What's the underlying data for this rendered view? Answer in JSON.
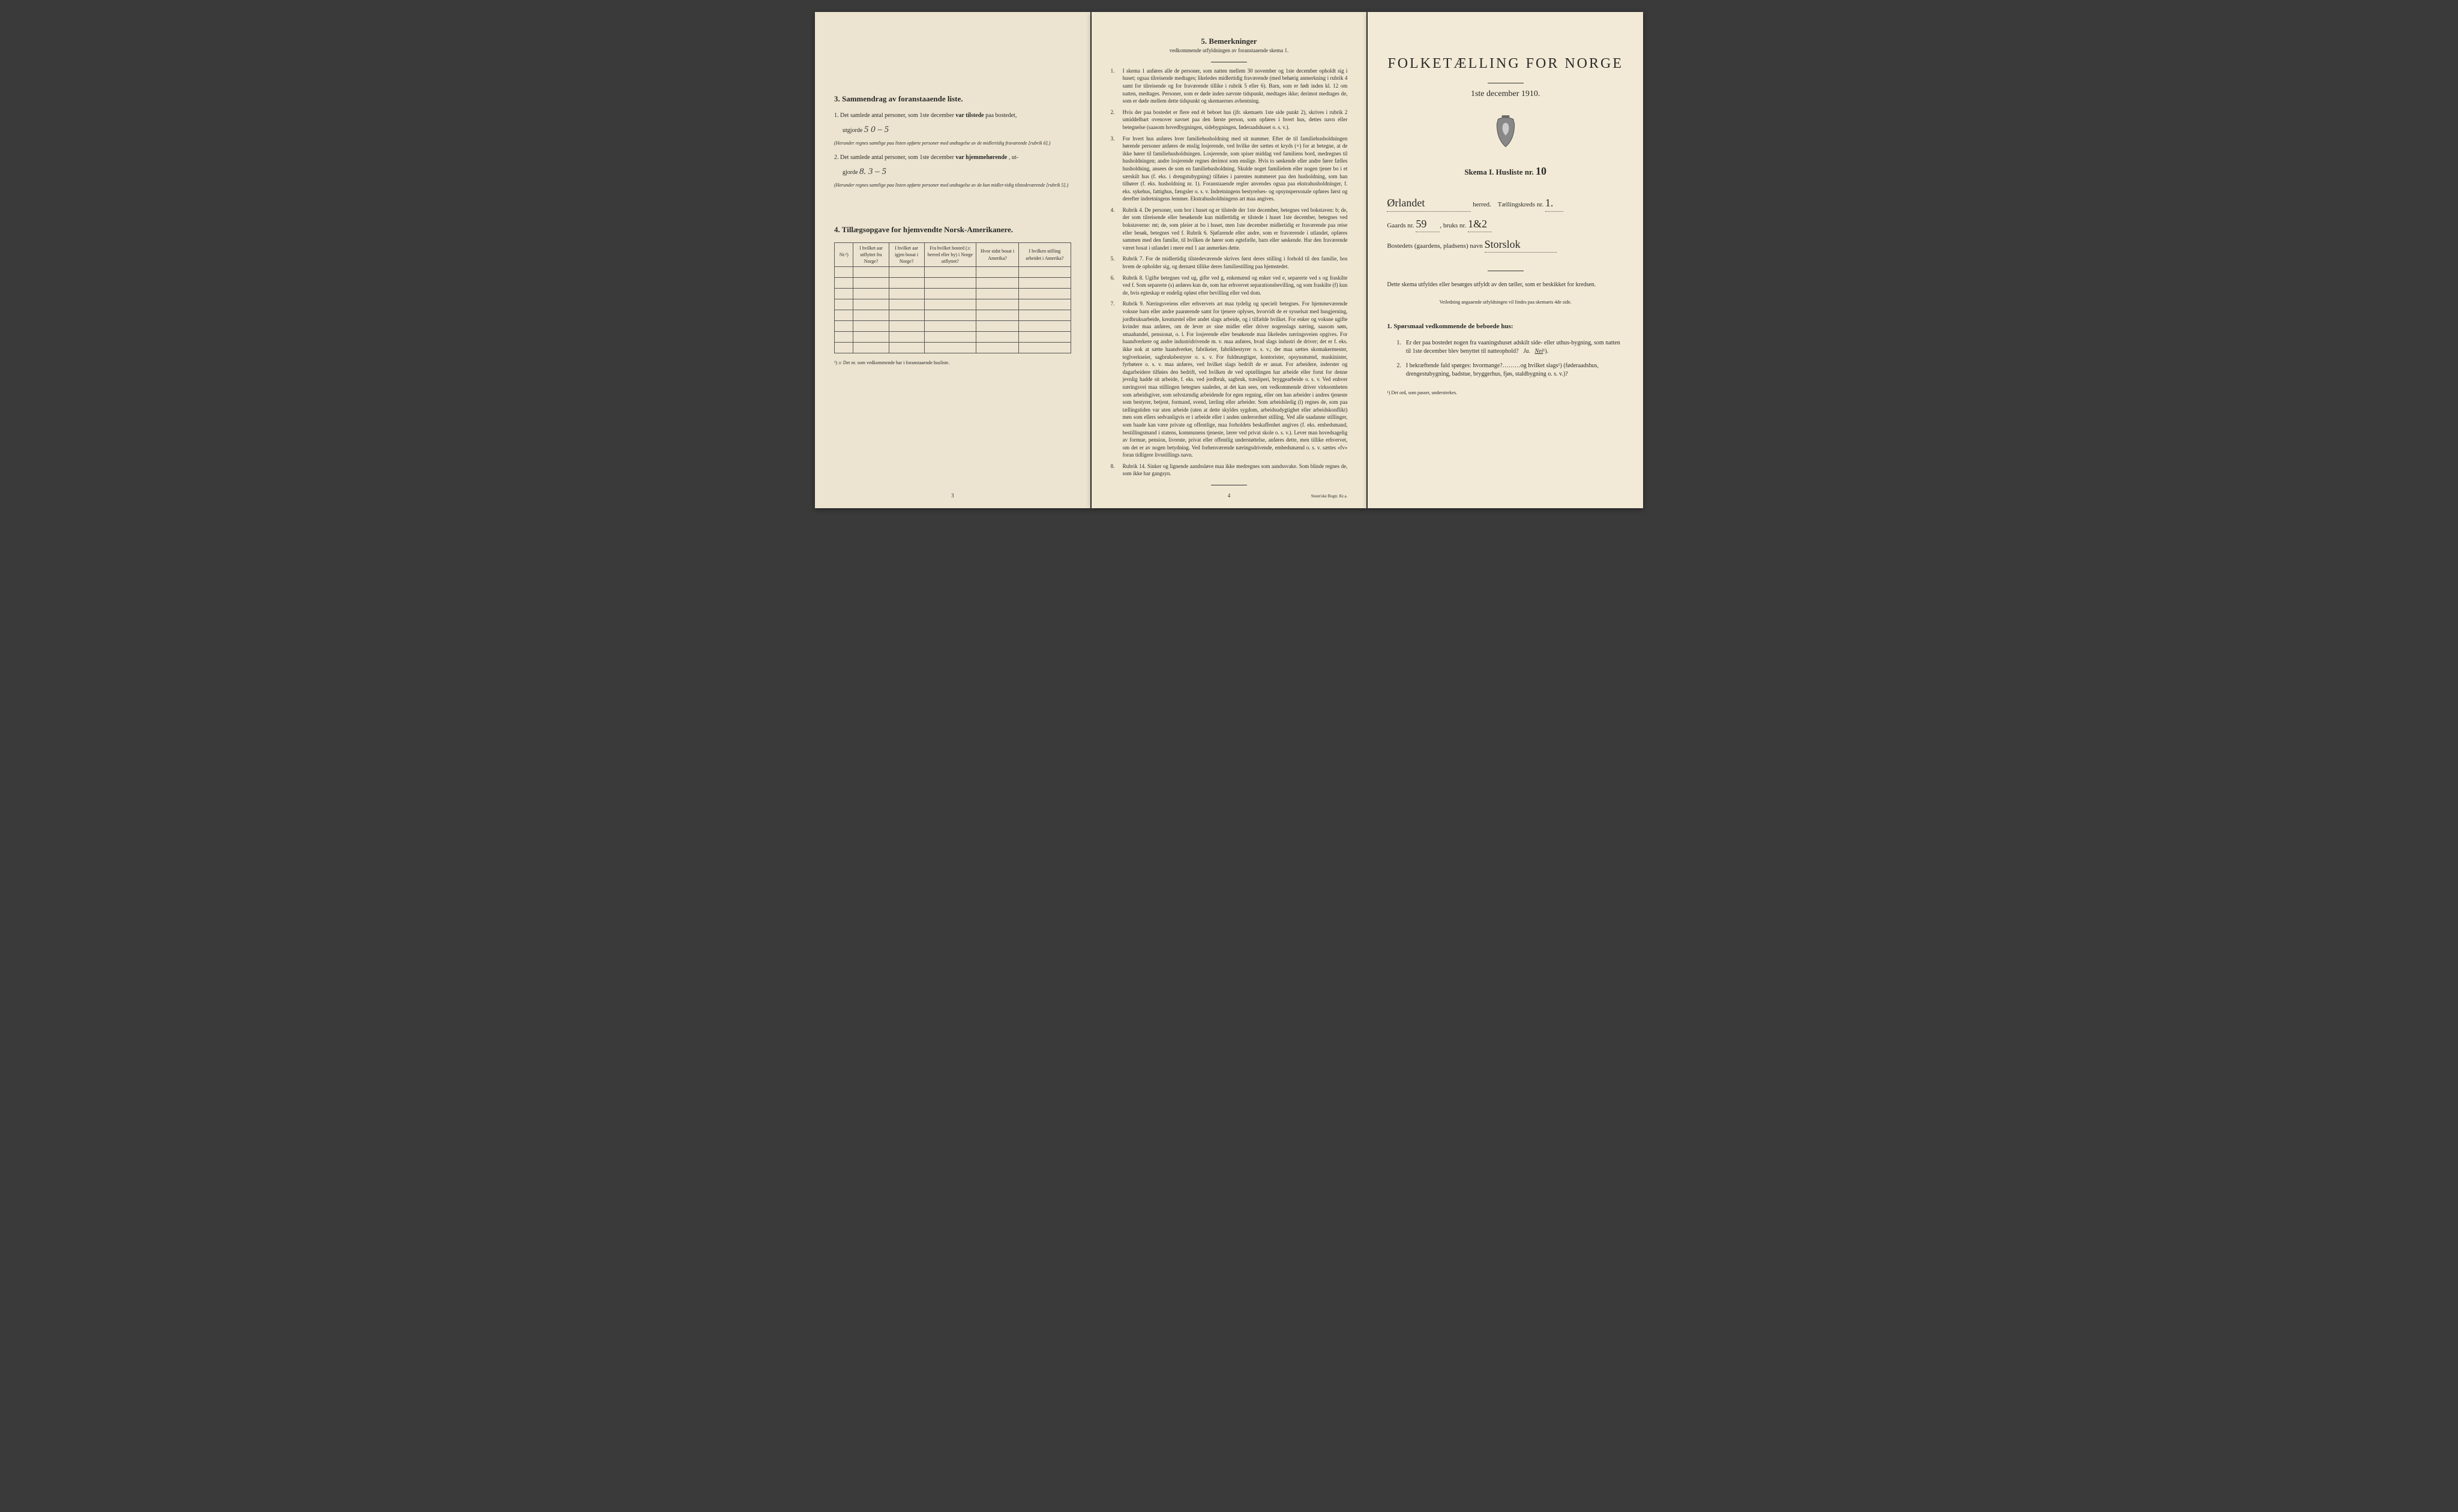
{
  "leftPage": {
    "section3": {
      "title": "3.   Sammendrag av foranstaaende liste.",
      "item1_prefix": "1.  Det samlede antal personer, som 1ste december",
      "item1_bold": "var tilstede",
      "item1_suffix": "paa bostedet,",
      "utgjorde": "utgjorde",
      "hand1": "5   0 – 5",
      "note1": "(Herunder regnes samtlige paa listen opførte personer med undtagelse av de midlertidig fraværende [rubrik 6].)",
      "item2_prefix": "2.  Det samlede antal personer, som 1ste december",
      "item2_bold": "var hjemmehørende",
      "item2_suffix": ", ut-",
      "gjorde": "gjorde",
      "hand2": "8.  3 – 5",
      "note2": "(Herunder regnes samtlige paa listen opførte personer med undtagelse av de kun midler-tidig tilstedeværende [rubrik 5].)"
    },
    "section4": {
      "title": "4.  Tillægsopgave for hjemvendte Norsk-Amerikanere.",
      "headers": [
        "Nr.¹)",
        "I hvilket aar utflyttet fra Norge?",
        "I hvilket aar igjen bosat i Norge?",
        "Fra hvilket bosted (ɔ: herred eller by) i Norge utflyttet?",
        "Hvor sidst bosat i Amerika?",
        "I hvilken stilling arbeidet i Amerika?"
      ],
      "footnote": "¹) ɔ: Det nr. som vedkommende har i foranstaaende husliste."
    },
    "pageNum": "3"
  },
  "midPage": {
    "title": "5.   Bemerkninger",
    "subtitle": "vedkommende utfyldningen av foranstaaende skema 1.",
    "items": [
      {
        "num": "1.",
        "text": "I skema 1 anføres alle de personer, som natten mellem 30 november og 1ste december opholdt sig i huset; ogsaa tilreisende medtages; likeledes midlertidig fraværende (med behørig anmerkning i rubrik 4 samt for tilreisende og for fraværende tillike i rubrik 5 eller 6). Barn, som er født inden kl. 12 om natten, medtages. Personer, som er døde inden nævnte tidspunkt, medtages ikke; derimot medtages de, som er døde mellem dette tidspunkt og skemaernes avhentning."
      },
      {
        "num": "2.",
        "text": "Hvis der paa bostedet er flere end ét beboet hus (jfr. skemaets 1ste side punkt 2), skrives i rubrik 2 umiddelbart ovenover navnet paa den første person, som opføres i hvert hus, dettes navn eller betegnelse (saasom hovedbygningen, sidebygningen, føderaadshuset o. s. v.)."
      },
      {
        "num": "3.",
        "text": "For hvert hus anføres hver familiehusholdning med sit nummer. Efter de til familiehusholdningen hørende personer anføres de enslig losjerende, ved hvilke der sættes et kryds (×) for at betegne, at de ikke hører til familiehusholdningen. Losjerende, som spiser middag ved familiens bord, medregnes til husholdningen; andre losjerende regnes derimot som enslige. Hvis to søskende eller andre fører fælles husholdning, ansees de som en familiehusholdning. Skulde noget familielem eller nogen tjener bo i et særskilt hus (f. eks. i drengstubygning) tilføies i parentes nummeret paa den husholdning, som han tilhører (f. eks. husholdning nr. 1).\nForanstaaende regler anvendes ogsaa paa ekstrahusholdninger, f. eks. sykehus, fattighus, fængsler o. s. v. Indretningens bestyrelses- og opsynspersonale opføres først og derefter indretningens lemmer. Ekstrahusholdningens art maa angives."
      },
      {
        "num": "4.",
        "text": "Rubrik 4. De personer, som bor i huset og er tilstede der 1ste december, betegnes ved bokstaven: b; de, der som tilreisende eller besøkende kun midlertidig er tilstede i huset 1ste december, betegnes ved bokstaverne: mt; de, som pleier at bo i huset, men 1ste december midlertidig er fraværende paa reise eller besøk, betegnes ved f.\nRubrik 6. Sjøfarende eller andre, som er fraværende i utlandet, opføres sammen med den familie, til hvilken de hører som egtefælle, barn eller søskende.\nHar den fraværende været bosat i utlandet i mere end 1 aar anmerkes dette."
      },
      {
        "num": "5.",
        "text": "Rubrik 7. For de midlertidig tilstedeværende skrives først deres stilling i forhold til den familie, hos hvem de opholder sig, og dernæst tillike deres familiestilling paa hjemstedet."
      },
      {
        "num": "6.",
        "text": "Rubrik 8. Ugifte betegnes ved ug, gifte ved g, enkemænd og enker ved e, separerte ved s og fraskilte ved f. Som separerte (s) anføres kun de, som har erhvervet separationsbevilling, og som fraskilte (f) kun de, hvis egteskap er endelig opløst efter bevilling eller ved dom."
      },
      {
        "num": "7.",
        "text": "Rubrik 9. Næringsveiens eller erhvervets art maa tydelig og specielt betegnes.\nFor hjemmeværende voksne barn eller andre paarørende samt for tjenere oplyses, hvorvidt de er sysselsat med husgjerning, jordbruksarbeide, kreaturstel eller andet slags arbeide, og i tilfælde hvilket. For enker og voksne ugifte kvinder maa anføres, om de lever av sine midler eller driver nogenslags næring, saasom søm, smaahandel, pensionat, o. l.\nFor losjerende eller besøkende maa likeledes næringsveien opgives.\nFor haandverkere og andre industridrivende m. v. maa anføres, hvad slags industri de driver; det er f. eks. ikke nok at sætte haandverker, fabrikeier, fabrikbestyrer o. s. v.; der maa sættes skomakermester, teglverkseier, sagbruksbestyrer o. s. v.\nFor fuldmægtiger, kontorister, opsynsmænd, maskinister, fyrbøtere o. s. v. maa anføres, ved hvilket slags bedrift de er ansat.\nFor arbeidere, inderster og dagarbeidere tilføies den bedrift, ved hvilken de ved optællingen har arbeide eller forut for denne jevnlig hadde sit arbeide, f. eks. ved jordbruk, sagbruk, træsliperi, bryggearbeide o. s. v.\nVed enhver næringsvei maa stillingen betegnes saaledes, at det kan sees, om vedkommende driver virksomheten som arbeidsgiver, som selvstændig arbeidende for egen regning, eller om han arbeider i andres tjeneste som bestyrer, betjent, formand, svend, lærling eller arbeider.\nSom arbeidsledig (l) regnes de, som paa tællingstiden var uten arbeide (uten at dette skyldes sygdom, arbeidsudygtighet eller arbeidskonflikt) men som ellers sedvanligvis er i arbeide eller i anden underordnet stilling.\nVed alle saadanne stillinger, som baade kan være private og offentlige, maa forholdets beskaffenhet angives (f. eks. embedsmand, bestillingsmand i statens, kommunens tjeneste, lærer ved privat skole o. s. v.).\nLever man hovedsagelig av formue, pension, livrente, privat eller offentlig understøttelse, anføres dette, men tillike erhvervet, om det er av nogen betydning.\nVed forhenværende næringsdrivende, embedsmænd o. s. v. sættes «fv» foran tidligere livsstillings navn."
      },
      {
        "num": "8.",
        "text": "Rubrik 14. Sinker og lignende aandssløve maa ikke medregnes som aandssvake.\nSom blinde regnes de, som ikke har gangsyn."
      }
    ],
    "pageNum": "4",
    "imprint": "Steen'ske Bogtr.  Kr.a."
  },
  "rightPage": {
    "mainTitle": "FOLKETÆLLING FOR NORGE",
    "date": "1ste december 1910.",
    "skemaLabel": "Skema I.   Husliste nr.",
    "huslisteNr": "10",
    "herredLabel": "herred.",
    "herredValue": "Ørlandet",
    "tellingskredsLabel": "Tællingskreds nr.",
    "tellingskredsValue": "1.",
    "gaardsLabel": "Gaards nr.",
    "gaardsValue": "59",
    "bruksLabel": "bruks nr.",
    "bruksValue": "1&2",
    "bostedLabel": "Bostedets (gaardens, pladsens) navn",
    "bostedValue": "Storslok",
    "descPara": "Dette skema utfyldes eller besørges utfyldt av den tæller, som er beskikket for kredsen.",
    "smallCenter": "Veiledning angaaende utfyldningen vil findes paa skemaets 4de side.",
    "q1Title": "1.  Spørsmaal vedkommende de beboede hus:",
    "q1_1": "Er der paa bostedet nogen fra vaaningshuset adskilt side- eller uthus-bygning, som natten til 1ste december blev benyttet til natteophold?",
    "q1_1_ja": "Ja.",
    "q1_1_nei": "Nei",
    "q1_1_sup": "¹).",
    "q1_2": "I bekræftende fald spørges: hvormange?………og hvilket slags¹) (føderaadshus, drengestubygning, badstue, bryggerhus, fjøs, staldbygning o. s. v.)?",
    "rightFootnote": "¹) Det ord, som passer, understrekes."
  }
}
